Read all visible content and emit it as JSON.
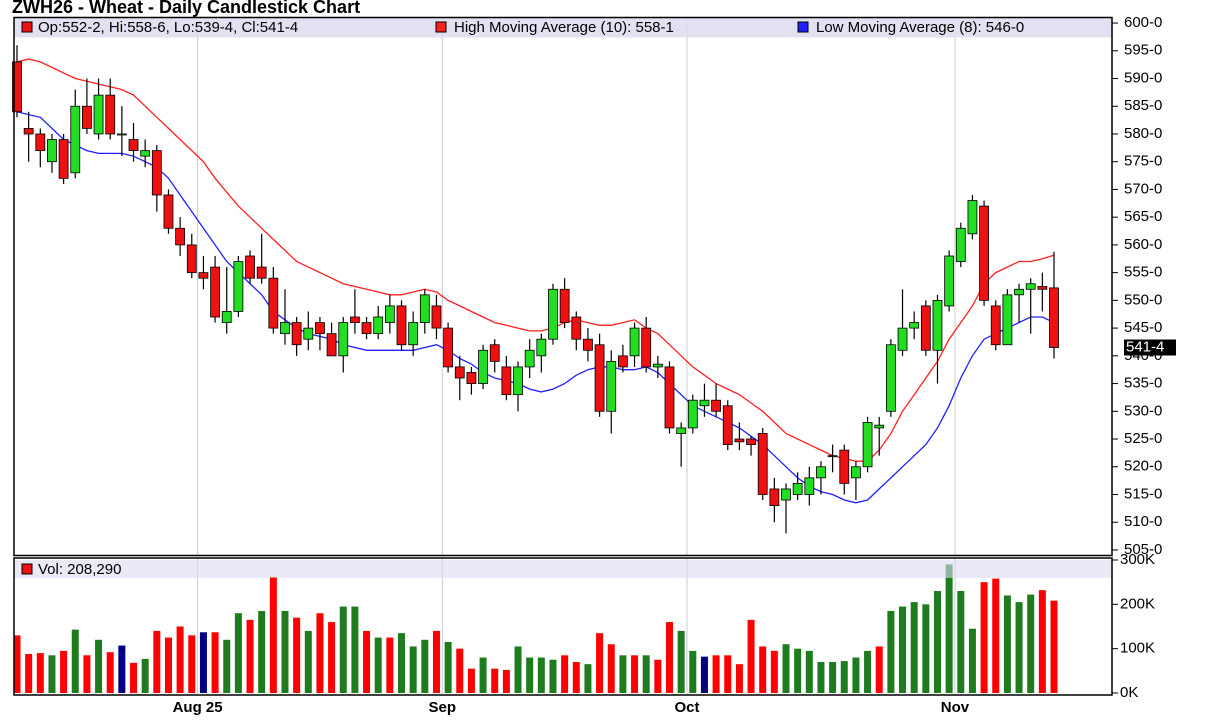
{
  "chart_data": [
    {
      "type": "candlestick",
      "title": "ZWH26 - Wheat - Daily Candlestick Chart",
      "ohlc_legend": "Op:552-2, Hi:558-6, Lo:539-4, Cl:541-4",
      "legend_color": "#ee1111",
      "up_color": "#22dd22",
      "down_color": "#ee1111",
      "categories": [
        null,
        null,
        null,
        null,
        null,
        null,
        null,
        null,
        null,
        null,
        null,
        null,
        null,
        null,
        null,
        null,
        "Aug 25",
        null,
        null,
        null,
        null,
        null,
        null,
        null,
        null,
        null,
        null,
        null,
        null,
        null,
        null,
        null,
        null,
        null,
        null,
        null,
        null,
        "Sep",
        null,
        null,
        null,
        null,
        null,
        null,
        null,
        null,
        null,
        null,
        null,
        null,
        null,
        null,
        null,
        null,
        null,
        null,
        null,
        null,
        "Oct",
        null,
        null,
        null,
        null,
        null,
        null,
        null,
        null,
        null,
        null,
        null,
        null,
        null,
        null,
        null,
        null,
        null,
        null,
        null,
        null,
        null,
        null,
        "Nov",
        null,
        null,
        null,
        null,
        null,
        null,
        null,
        null
      ],
      "open": [
        593,
        581,
        580,
        575,
        579,
        573,
        585,
        580,
        587,
        580,
        579,
        576,
        577,
        569,
        563,
        560,
        555,
        556,
        546,
        548,
        558,
        556,
        554,
        544,
        546,
        543,
        546,
        544,
        540,
        547,
        546,
        544,
        546,
        549,
        542,
        546,
        549,
        545,
        538,
        537,
        535,
        542,
        538,
        533,
        538,
        540,
        543,
        552,
        547,
        543,
        542,
        530,
        540,
        540,
        545,
        538,
        538,
        526,
        527,
        531,
        532,
        531,
        525,
        525,
        526,
        516,
        514,
        515,
        515,
        518,
        522,
        523,
        518,
        520,
        527,
        530,
        541,
        545,
        549,
        541,
        549,
        557,
        562,
        567,
        549,
        542,
        551,
        552,
        552.5,
        552.25
      ],
      "high": [
        596,
        584,
        581,
        580,
        580,
        588,
        590,
        590,
        590,
        585,
        582,
        579,
        578,
        570,
        565,
        562,
        558,
        558,
        556,
        558,
        559,
        562,
        556,
        552,
        547,
        548,
        547,
        546,
        547,
        552,
        547,
        549,
        551,
        550,
        548,
        552,
        551,
        546,
        540,
        538,
        542,
        543,
        540,
        539,
        543,
        544,
        553,
        554,
        548,
        545,
        544,
        541,
        542,
        546,
        547,
        540,
        539,
        528,
        533,
        535,
        535,
        532,
        528,
        525.5,
        527,
        518,
        517,
        519,
        520,
        521,
        524,
        524,
        521,
        529,
        529,
        543,
        552,
        548,
        550,
        551,
        559,
        564,
        569,
        568,
        550,
        552,
        553,
        554,
        555,
        558.75
      ],
      "low": [
        583,
        575,
        574,
        573,
        571,
        572,
        580,
        579,
        579,
        576,
        575,
        574,
        566,
        562,
        558,
        554,
        552,
        546,
        544,
        547,
        553,
        553,
        544,
        542,
        540,
        541,
        541,
        540,
        537,
        544,
        543,
        543,
        544,
        541,
        540,
        544,
        543,
        537,
        532,
        533,
        534,
        537,
        532,
        530,
        536,
        537,
        542,
        545,
        541,
        539,
        529,
        526,
        537,
        538,
        537,
        536,
        526,
        520,
        526,
        529,
        529,
        523,
        523,
        522,
        514,
        510,
        508,
        514,
        513,
        515,
        519,
        515,
        514,
        519,
        522,
        529,
        540,
        543,
        540,
        535,
        548,
        556,
        561,
        549,
        541,
        542,
        546,
        544,
        548,
        539.5
      ],
      "close": [
        584,
        580,
        577,
        579,
        572,
        585,
        581,
        587,
        580,
        580,
        577,
        577,
        569,
        563,
        560,
        555,
        554,
        547,
        548,
        557,
        554,
        554,
        545,
        546,
        542,
        545,
        544,
        540,
        546,
        546,
        544,
        547,
        549,
        542,
        546,
        551,
        545,
        538,
        536,
        535,
        541,
        539,
        533,
        538,
        541,
        543,
        552,
        546,
        543,
        541,
        530,
        539,
        538,
        545,
        538,
        538.5,
        527,
        527,
        532,
        532,
        530,
        524,
        524.5,
        524,
        515,
        513,
        516,
        517,
        518,
        520,
        522,
        517,
        520,
        528,
        527.5,
        542,
        545,
        546,
        541,
        550,
        558,
        563,
        568,
        550,
        542,
        551,
        552,
        553,
        552,
        541.5
      ],
      "last_label": "541-4",
      "series": [
        {
          "name": "High Moving Average (10): 558-1",
          "color": "#ff2020",
          "values": [
            593,
            593.5,
            593,
            592,
            591,
            590,
            589.5,
            589,
            588.5,
            588,
            587,
            585,
            583,
            581,
            579,
            577,
            575,
            572,
            569.5,
            567,
            565,
            563,
            561,
            559,
            557,
            556,
            555,
            554,
            553,
            552.5,
            552,
            551.5,
            551,
            551,
            551.5,
            552,
            551.5,
            550,
            549,
            548,
            547,
            546,
            545.5,
            545,
            544.5,
            544.5,
            545,
            546,
            546.5,
            546,
            545.5,
            545.5,
            546,
            546.5,
            545,
            544,
            542,
            540,
            538,
            536.5,
            535,
            534,
            533,
            531.5,
            530,
            528,
            526,
            525,
            524,
            523,
            522,
            521.5,
            521,
            521,
            523,
            526,
            530,
            533,
            536,
            539,
            543,
            546,
            549,
            553,
            555,
            556,
            557,
            557,
            557.5,
            558.125
          ]
        },
        {
          "name": "Low Moving Average (8): 546-0",
          "color": "#2020ff",
          "values": [
            584,
            583.5,
            583,
            581,
            579,
            578,
            577,
            576.5,
            576.5,
            576.5,
            576,
            575,
            574,
            572,
            569,
            566,
            563,
            560,
            557,
            555,
            553,
            551,
            548,
            546.5,
            545,
            544,
            543.5,
            543,
            542,
            541.5,
            541,
            541,
            541,
            541,
            541,
            541.5,
            542,
            541,
            539.5,
            538.5,
            537,
            536,
            535.5,
            535,
            534,
            533.5,
            534,
            535,
            536.5,
            537.5,
            538,
            538,
            537.5,
            537.5,
            538,
            537,
            535,
            533,
            531,
            530,
            529,
            528,
            527,
            525.5,
            524,
            522,
            520,
            518,
            516.5,
            515.5,
            515,
            514,
            513.5,
            514,
            516,
            518,
            520,
            522,
            524,
            527,
            531,
            536,
            540,
            543,
            544,
            545,
            546,
            547,
            547,
            546
          ]
        }
      ],
      "ylim": [
        504,
        601
      ],
      "yticks": [
        {
          "value": 505,
          "label": "505-0"
        },
        {
          "value": 510,
          "label": "510-0"
        },
        {
          "value": 515,
          "label": "515-0"
        },
        {
          "value": 520,
          "label": "520-0"
        },
        {
          "value": 525,
          "label": "525-0"
        },
        {
          "value": 530,
          "label": "530-0"
        },
        {
          "value": 535,
          "label": "535-0"
        },
        {
          "value": 540,
          "label": "540-0"
        },
        {
          "value": 545,
          "label": "545-0"
        },
        {
          "value": 550,
          "label": "550-0"
        },
        {
          "value": 555,
          "label": "555-0"
        },
        {
          "value": 560,
          "label": "560-0"
        },
        {
          "value": 565,
          "label": "565-0"
        },
        {
          "value": 570,
          "label": "570-0"
        },
        {
          "value": 575,
          "label": "575-0"
        },
        {
          "value": 580,
          "label": "580-0"
        },
        {
          "value": 585,
          "label": "585-0"
        },
        {
          "value": 590,
          "label": "590-0"
        },
        {
          "value": 595,
          "label": "595-0"
        },
        {
          "value": 600,
          "label": "600-0"
        }
      ],
      "xgrid": true
    },
    {
      "type": "bar",
      "series": [
        {
          "name": "Vol: 208,290",
          "color": "#ee1111"
        }
      ],
      "values": [
        130000,
        88000,
        90000,
        85000,
        95000,
        143000,
        85000,
        120000,
        92000,
        107000,
        68000,
        77000,
        140000,
        125000,
        150000,
        130000,
        137000,
        137000,
        120000,
        180000,
        165000,
        185000,
        262000,
        185000,
        170000,
        140000,
        180000,
        160000,
        195000,
        195000,
        140000,
        125000,
        125000,
        135000,
        105000,
        120000,
        140000,
        115000,
        100000,
        55000,
        80000,
        55000,
        52000,
        105000,
        80000,
        80000,
        75000,
        85000,
        70000,
        65000,
        135000,
        110000,
        85000,
        85000,
        85000,
        75000,
        160000,
        140000,
        95000,
        82000,
        85000,
        85000,
        65000,
        165000,
        105000,
        95000,
        110000,
        100000,
        95000,
        70000,
        70000,
        72000,
        80000,
        95000,
        105000,
        185000,
        195000,
        205000,
        200000,
        230000,
        290000,
        230000,
        145000,
        250000,
        258000,
        220000,
        205000,
        222000,
        232000,
        208290
      ],
      "colors": [
        "#ff0000",
        "#ff0000",
        "#ff0000",
        "#1e7b1e",
        "#ff0000",
        "#1e7b1e",
        "#ff0000",
        "#1e7b1e",
        "#ff0000",
        "#000080",
        "#ff0000",
        "#1e7b1e",
        "#ff0000",
        "#ff0000",
        "#ff0000",
        "#ff0000",
        "#000080",
        "#ff0000",
        "#1e7b1e",
        "#1e7b1e",
        "#ff0000",
        "#1e7b1e",
        "#ff0000",
        "#1e7b1e",
        "#ff0000",
        "#1e7b1e",
        "#ff0000",
        "#ff0000",
        "#1e7b1e",
        "#1e7b1e",
        "#ff0000",
        "#1e7b1e",
        "#ff0000",
        "#1e7b1e",
        "#1e7b1e",
        "#1e7b1e",
        "#ff0000",
        "#1e7b1e",
        "#ff0000",
        "#ff0000",
        "#1e7b1e",
        "#ff0000",
        "#ff0000",
        "#1e7b1e",
        "#1e7b1e",
        "#1e7b1e",
        "#1e7b1e",
        "#ff0000",
        "#ff0000",
        "#1e7b1e",
        "#ff0000",
        "#ff0000",
        "#1e7b1e",
        "#ff0000",
        "#1e7b1e",
        "#ff0000",
        "#ff0000",
        "#1e7b1e",
        "#1e7b1e",
        "#000080",
        "#ff0000",
        "#ff0000",
        "#ff0000",
        "#ff0000",
        "#ff0000",
        "#ff0000",
        "#1e7b1e",
        "#1e7b1e",
        "#1e7b1e",
        "#1e7b1e",
        "#1e7b1e",
        "#1e7b1e",
        "#1e7b1e",
        "#1e7b1e",
        "#ff0000",
        "#1e7b1e",
        "#1e7b1e",
        "#1e7b1e",
        "#1e7b1e",
        "#1e7b1e",
        "#1e7b1e",
        "#1e7b1e",
        "#1e7b1e",
        "#ff0000",
        "#ff0000",
        "#1e7b1e",
        "#1e7b1e",
        "#1e7b1e",
        "#ff0000",
        "#ff0000"
      ],
      "ylim": [
        0,
        300000
      ],
      "yticks": [
        {
          "value": 0,
          "label": "0K"
        },
        {
          "value": 100000,
          "label": "100K"
        },
        {
          "value": 200000,
          "label": "200K"
        },
        {
          "value": 300000,
          "label": "300K"
        }
      ]
    }
  ]
}
